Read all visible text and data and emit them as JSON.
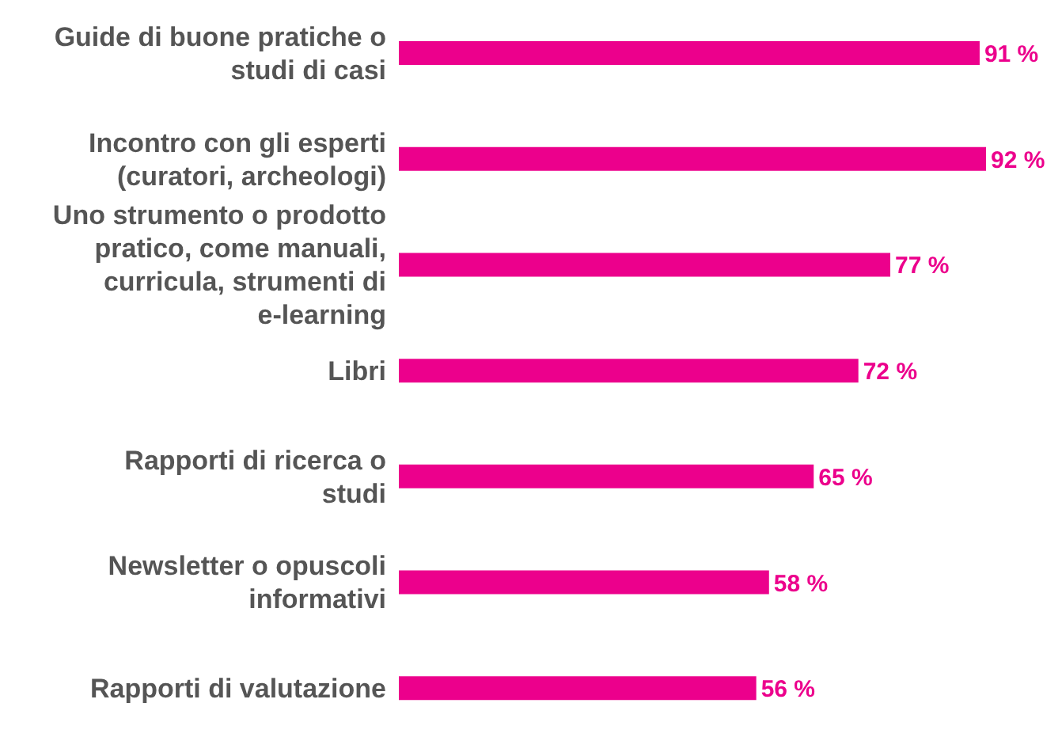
{
  "chart_data": {
    "type": "bar",
    "orientation": "horizontal",
    "categories": [
      "Guide di buone pratiche o studi di casi",
      "Incontro con gli esperti (curatori, archeologi)",
      "Uno strumento o prodotto pratico, come manuali, curricula, strumenti di e-learning",
      "Libri",
      "Rapporti di ricerca o studi",
      "Newsletter o opuscoli informativi",
      "Rapporti di valutazione"
    ],
    "values": [
      91,
      92,
      77,
      72,
      65,
      58,
      56
    ],
    "value_labels": [
      "91 %",
      "92 %",
      "77 %",
      "72 %",
      "65 %",
      "58 %",
      "56 %"
    ],
    "color": "#ec008c"
  }
}
